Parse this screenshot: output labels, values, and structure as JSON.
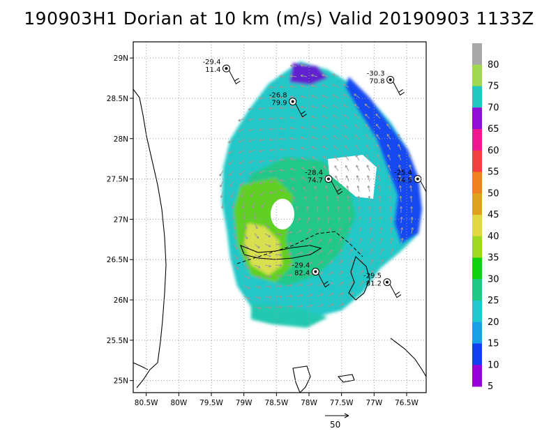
{
  "title": "190903H1 Dorian at 10 km (m/s) Valid 20190903 1133Z",
  "map": {
    "lon_range": [
      -80.7,
      -76.2
    ],
    "lat_range": [
      24.85,
      29.2
    ],
    "lon_ticks": [
      "80.5W",
      "80W",
      "79.5W",
      "79W",
      "78.5W",
      "78W",
      "77.5W",
      "77W",
      "76.5W"
    ],
    "lat_ticks": [
      "29N",
      "28.5N",
      "28N",
      "27.5N",
      "27N",
      "26.5N",
      "26N",
      "25.5N",
      "25N"
    ],
    "grid": "dotted",
    "storm_center": {
      "lon": -78.45,
      "lat": 27.1
    }
  },
  "colorbar": {
    "labels": [
      "80",
      "75",
      "70",
      "65",
      "60",
      "55",
      "50",
      "45",
      "40",
      "35",
      "30",
      "25",
      "20",
      "15",
      "10",
      "5"
    ],
    "colors": [
      "#a8a8a8",
      "#a0d850",
      "#20c8c0",
      "#9010d8",
      "#f01890",
      "#f04040",
      "#f08020",
      "#e0a020",
      "#e0d840",
      "#a0d820",
      "#10d010",
      "#20c888",
      "#20c8d0",
      "#18a0e8",
      "#1040f0",
      "#9800d8"
    ]
  },
  "vector_reference": {
    "label": "50"
  },
  "stations": [
    {
      "lon": -79.27,
      "lat": 28.87,
      "temp": "-29.4",
      "wind": "11.4"
    },
    {
      "lon": -78.25,
      "lat": 28.46,
      "temp": "-26.8",
      "wind": "79.9"
    },
    {
      "lon": -77.7,
      "lat": 27.5,
      "temp": "-28.4",
      "wind": "74.7"
    },
    {
      "lon": -76.33,
      "lat": 27.5,
      "temp": "-25.4",
      "wind": "74.5"
    },
    {
      "lon": -76.75,
      "lat": 28.73,
      "temp": "-30.3",
      "wind": "70.8"
    },
    {
      "lon": -77.9,
      "lat": 26.35,
      "temp": "-29.4",
      "wind": "82.4"
    },
    {
      "lon": -76.8,
      "lat": 26.22,
      "temp": "-29.5",
      "wind": "81.2"
    }
  ]
}
